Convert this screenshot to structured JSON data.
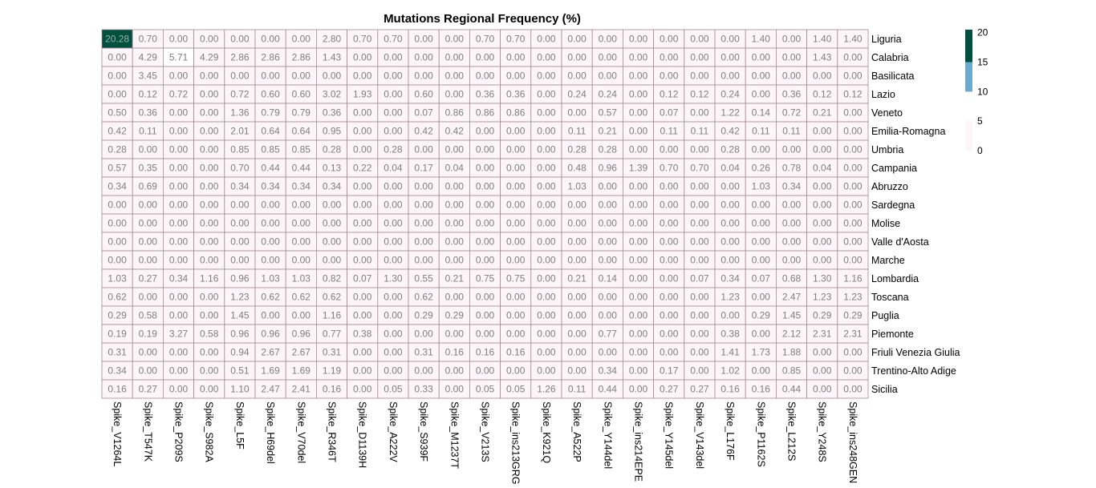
{
  "chart_data": {
    "type": "heatmap",
    "title": "Mutations Regional Frequency (%)",
    "columns": [
      "Spike_V1264L",
      "Spike_T547K",
      "Spike_P209S",
      "Spike_S982A",
      "Spike_L5F",
      "Spike_H69del",
      "Spike_V70del",
      "Spike_R346T",
      "Spike_D1139H",
      "Spike_A222V",
      "Spike_S939F",
      "Spike_M1237T",
      "Spike_V213S",
      "Spike_ins213GRG",
      "Spike_K921Q",
      "Spike_A522P",
      "Spike_Y144del",
      "Spike_ins214EPE",
      "Spike_Y145del",
      "Spike_V143del",
      "Spike_L176F",
      "Spike_P1162S",
      "Spike_L212S",
      "Spike_Y248S",
      "Spike_ins248GEN"
    ],
    "rows": [
      "Liguria",
      "Calabria",
      "Basilicata",
      "Lazio",
      "Veneto",
      "Emilia-Romagna",
      "Umbria",
      "Campania",
      "Abruzzo",
      "Sardegna",
      "Molise",
      "Valle d'Aosta",
      "Marche",
      "Lombardia",
      "Toscana",
      "Puglia",
      "Piemonte",
      "Friuli Venezia Giulia",
      "Trentino-Alto Adige",
      "Sicilia"
    ],
    "values": [
      [
        "20.28",
        "0.70",
        "0.00",
        "0.00",
        "0.00",
        "0.00",
        "0.00",
        "2.80",
        "0.70",
        "0.70",
        "0.00",
        "0.00",
        "0.70",
        "0.70",
        "0.00",
        "0.00",
        "0.00",
        "0.00",
        "0.00",
        "0.00",
        "0.00",
        "1.40",
        "0.00",
        "1.40",
        "1.40"
      ],
      [
        "0.00",
        "4.29",
        "5.71",
        "4.29",
        "2.86",
        "2.86",
        "2.86",
        "1.43",
        "0.00",
        "0.00",
        "0.00",
        "0.00",
        "0.00",
        "0.00",
        "0.00",
        "0.00",
        "0.00",
        "0.00",
        "0.00",
        "0.00",
        "0.00",
        "0.00",
        "0.00",
        "1.43",
        "0.00"
      ],
      [
        "0.00",
        "3.45",
        "0.00",
        "0.00",
        "0.00",
        "0.00",
        "0.00",
        "0.00",
        "0.00",
        "0.00",
        "0.00",
        "0.00",
        "0.00",
        "0.00",
        "0.00",
        "0.00",
        "0.00",
        "0.00",
        "0.00",
        "0.00",
        "0.00",
        "0.00",
        "0.00",
        "0.00",
        "0.00"
      ],
      [
        "0.00",
        "0.12",
        "0.72",
        "0.00",
        "0.72",
        "0.60",
        "0.60",
        "3.02",
        "1.93",
        "0.00",
        "0.60",
        "0.00",
        "0.36",
        "0.36",
        "0.00",
        "0.24",
        "0.24",
        "0.00",
        "0.12",
        "0.12",
        "0.24",
        "0.00",
        "0.36",
        "0.12",
        "0.12"
      ],
      [
        "0.50",
        "0.36",
        "0.00",
        "0.00",
        "1.36",
        "0.79",
        "0.79",
        "0.36",
        "0.00",
        "0.00",
        "0.07",
        "0.86",
        "0.86",
        "0.86",
        "0.00",
        "0.00",
        "0.57",
        "0.00",
        "0.07",
        "0.00",
        "1.22",
        "0.14",
        "0.72",
        "0.21",
        "0.00"
      ],
      [
        "0.42",
        "0.11",
        "0.00",
        "0.00",
        "2.01",
        "0.64",
        "0.64",
        "0.95",
        "0.00",
        "0.00",
        "0.42",
        "0.42",
        "0.00",
        "0.00",
        "0.00",
        "0.11",
        "0.21",
        "0.00",
        "0.11",
        "0.11",
        "0.42",
        "0.11",
        "0.11",
        "0.00",
        "0.00"
      ],
      [
        "0.28",
        "0.00",
        "0.00",
        "0.00",
        "0.85",
        "0.85",
        "0.85",
        "0.28",
        "0.00",
        "0.28",
        "0.00",
        "0.00",
        "0.00",
        "0.00",
        "0.00",
        "0.28",
        "0.28",
        "0.00",
        "0.00",
        "0.00",
        "0.28",
        "0.00",
        "0.00",
        "0.00",
        "0.00"
      ],
      [
        "0.57",
        "0.35",
        "0.00",
        "0.00",
        "0.70",
        "0.44",
        "0.44",
        "0.13",
        "0.22",
        "0.04",
        "0.17",
        "0.04",
        "0.00",
        "0.00",
        "0.00",
        "0.48",
        "0.96",
        "1.39",
        "0.70",
        "0.70",
        "0.04",
        "0.26",
        "0.78",
        "0.04",
        "0.00"
      ],
      [
        "0.34",
        "0.69",
        "0.00",
        "0.00",
        "0.34",
        "0.34",
        "0.34",
        "0.34",
        "0.00",
        "0.00",
        "0.00",
        "0.00",
        "0.00",
        "0.00",
        "0.00",
        "1.03",
        "0.00",
        "0.00",
        "0.00",
        "0.00",
        "0.00",
        "1.03",
        "0.34",
        "0.00",
        "0.00"
      ],
      [
        "0.00",
        "0.00",
        "0.00",
        "0.00",
        "0.00",
        "0.00",
        "0.00",
        "0.00",
        "0.00",
        "0.00",
        "0.00",
        "0.00",
        "0.00",
        "0.00",
        "0.00",
        "0.00",
        "0.00",
        "0.00",
        "0.00",
        "0.00",
        "0.00",
        "0.00",
        "0.00",
        "0.00",
        "0.00"
      ],
      [
        "0.00",
        "0.00",
        "0.00",
        "0.00",
        "0.00",
        "0.00",
        "0.00",
        "0.00",
        "0.00",
        "0.00",
        "0.00",
        "0.00",
        "0.00",
        "0.00",
        "0.00",
        "0.00",
        "0.00",
        "0.00",
        "0.00",
        "0.00",
        "0.00",
        "0.00",
        "0.00",
        "0.00",
        "0.00"
      ],
      [
        "0.00",
        "0.00",
        "0.00",
        "0.00",
        "0.00",
        "0.00",
        "0.00",
        "0.00",
        "0.00",
        "0.00",
        "0.00",
        "0.00",
        "0.00",
        "0.00",
        "0.00",
        "0.00",
        "0.00",
        "0.00",
        "0.00",
        "0.00",
        "0.00",
        "0.00",
        "0.00",
        "0.00",
        "0.00"
      ],
      [
        "0.00",
        "0.00",
        "0.00",
        "0.00",
        "0.00",
        "0.00",
        "0.00",
        "0.00",
        "0.00",
        "0.00",
        "0.00",
        "0.00",
        "0.00",
        "0.00",
        "0.00",
        "0.00",
        "0.00",
        "0.00",
        "0.00",
        "0.00",
        "0.00",
        "0.00",
        "0.00",
        "0.00",
        "0.00"
      ],
      [
        "1.03",
        "0.27",
        "0.34",
        "1.16",
        "0.96",
        "1.03",
        "1.03",
        "0.82",
        "0.07",
        "1.30",
        "0.55",
        "0.21",
        "0.75",
        "0.75",
        "0.00",
        "0.21",
        "0.14",
        "0.00",
        "0.00",
        "0.07",
        "0.34",
        "0.07",
        "0.68",
        "1.30",
        "1.16"
      ],
      [
        "0.62",
        "0.00",
        "0.00",
        "0.00",
        "1.23",
        "0.62",
        "0.62",
        "0.62",
        "0.00",
        "0.00",
        "0.62",
        "0.00",
        "0.00",
        "0.00",
        "0.00",
        "0.00",
        "0.00",
        "0.00",
        "0.00",
        "0.00",
        "1.23",
        "0.00",
        "2.47",
        "1.23",
        "1.23"
      ],
      [
        "0.29",
        "0.58",
        "0.00",
        "0.00",
        "1.45",
        "0.00",
        "0.00",
        "1.16",
        "0.00",
        "0.00",
        "0.29",
        "0.29",
        "0.00",
        "0.00",
        "0.00",
        "0.00",
        "0.00",
        "0.00",
        "0.00",
        "0.00",
        "0.00",
        "0.29",
        "1.45",
        "0.29",
        "0.29"
      ],
      [
        "0.19",
        "0.19",
        "3.27",
        "0.58",
        "0.96",
        "0.96",
        "0.96",
        "0.77",
        "0.38",
        "0.00",
        "0.00",
        "0.00",
        "0.00",
        "0.00",
        "0.00",
        "0.00",
        "0.77",
        "0.00",
        "0.00",
        "0.00",
        "0.38",
        "0.00",
        "2.12",
        "2.31",
        "2.31"
      ],
      [
        "0.31",
        "0.00",
        "0.00",
        "0.00",
        "0.94",
        "2.67",
        "2.67",
        "0.31",
        "0.00",
        "0.00",
        "0.31",
        "0.16",
        "0.16",
        "0.16",
        "0.00",
        "0.00",
        "0.00",
        "0.00",
        "0.00",
        "0.00",
        "1.41",
        "1.73",
        "1.88",
        "0.00",
        "0.00"
      ],
      [
        "0.34",
        "0.00",
        "0.00",
        "0.00",
        "0.51",
        "1.69",
        "1.69",
        "1.19",
        "0.00",
        "0.00",
        "0.00",
        "0.00",
        "0.00",
        "0.00",
        "0.00",
        "0.00",
        "0.34",
        "0.00",
        "0.17",
        "0.00",
        "1.02",
        "0.00",
        "0.85",
        "0.00",
        "0.00"
      ],
      [
        "0.16",
        "0.27",
        "0.00",
        "0.00",
        "1.10",
        "2.47",
        "2.41",
        "0.16",
        "0.00",
        "0.05",
        "0.33",
        "0.00",
        "0.05",
        "0.05",
        "1.26",
        "0.11",
        "0.44",
        "0.00",
        "0.27",
        "0.27",
        "0.16",
        "0.16",
        "0.44",
        "0.00",
        "0.00"
      ]
    ],
    "color_breaks": [
      {
        "min": 0,
        "max": 5,
        "color": "#fdf5f7"
      },
      {
        "min": 5,
        "max": 10,
        "color": "#ffffff"
      },
      {
        "min": 10,
        "max": 15,
        "color": "#6aa9d0"
      },
      {
        "min": 15,
        "max": 20.5,
        "color": "#00503f"
      }
    ],
    "legend": {
      "position": "right",
      "ticks": [
        "20",
        "15",
        "10",
        "5",
        "0"
      ]
    },
    "colors": {
      "grid_line": "#a48a98",
      "text_light_cell": "#7f7f7f",
      "text_dark_cell": "#9bb0aa"
    }
  }
}
